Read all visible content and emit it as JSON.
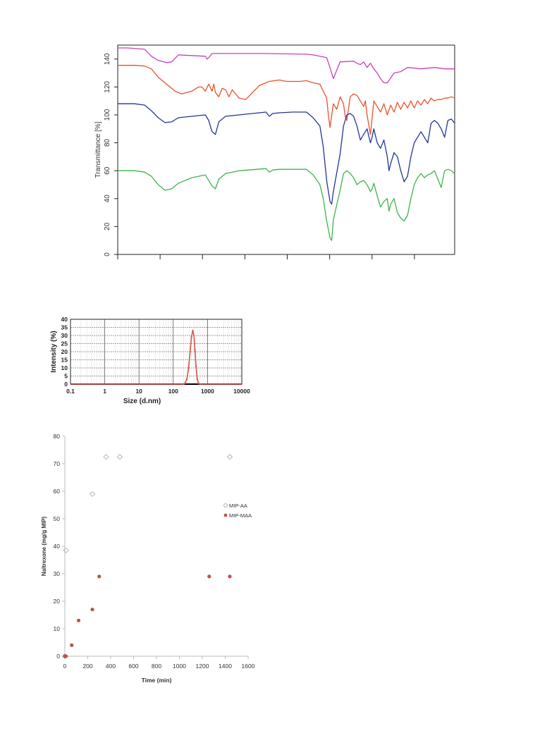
{
  "chart_data": [
    {
      "type": "line",
      "title": "",
      "xlabel": "",
      "ylabel": "Transmittance [%]",
      "ylim": [
        0,
        150
      ],
      "yticks": [
        0,
        20,
        40,
        60,
        80,
        100,
        120,
        140
      ],
      "x_tick_count": 8,
      "x_tick_labels_visible": false,
      "grid": false,
      "legend": "none",
      "colors": [
        "#cc3fb8",
        "#e8532a",
        "#23349a",
        "#3cb44a"
      ],
      "series": [
        {
          "color": "#cc3fb8",
          "x": [
            0,
            3,
            8,
            10,
            12,
            14.5,
            16,
            18,
            26,
            26.5,
            27,
            28,
            29,
            30,
            35,
            44,
            56,
            58,
            62,
            63,
            64,
            66,
            70,
            71,
            72,
            73,
            74,
            75,
            76,
            77,
            78,
            79,
            80,
            82,
            84,
            86,
            90,
            94,
            97,
            100
          ],
          "values": [
            148,
            148,
            147,
            142,
            139,
            137.5,
            138,
            143,
            142,
            140,
            141,
            144,
            144,
            144,
            144,
            144,
            143.5,
            143,
            141,
            134,
            126,
            138,
            138.5,
            137,
            136,
            138,
            134,
            137,
            133,
            130,
            126,
            123,
            123,
            130,
            131,
            134,
            133,
            134,
            133,
            133
          ]
        },
        {
          "color": "#e8532a",
          "x": [
            0,
            5,
            8,
            10,
            12,
            15,
            17,
            19,
            22,
            24,
            25,
            26,
            27,
            28,
            28.5,
            29,
            30,
            31,
            32,
            33,
            34,
            36,
            38,
            42,
            45,
            48,
            50,
            52,
            54,
            56,
            58,
            60,
            62,
            62.5,
            63,
            64,
            65,
            66,
            67,
            67.5,
            68,
            69,
            70,
            71,
            72,
            73,
            73.5,
            74,
            75,
            76,
            77,
            78,
            79,
            80,
            81,
            82,
            83,
            84,
            85,
            86,
            87,
            88,
            89,
            90,
            91,
            92,
            93,
            94,
            95,
            96,
            97,
            98,
            99,
            100
          ],
          "values": [
            135.5,
            135.5,
            135,
            133,
            127,
            121,
            117,
            115,
            117,
            120,
            120,
            117,
            122,
            117,
            122,
            116,
            113,
            119,
            118,
            113,
            118,
            112,
            111,
            121,
            124,
            125,
            124,
            124,
            124,
            124.5,
            123,
            122,
            112,
            100,
            91,
            108,
            104,
            113,
            108,
            99,
            96,
            113,
            115,
            114,
            110,
            106,
            110,
            100,
            86,
            110,
            106,
            102,
            108,
            100,
            107,
            102,
            109,
            104,
            109,
            105,
            110,
            105,
            110,
            107,
            111,
            108,
            112,
            110,
            111,
            111,
            112,
            112,
            113,
            112
          ]
        },
        {
          "color": "#23349a",
          "x": [
            0,
            5,
            8,
            10,
            12,
            14,
            16,
            18,
            22,
            26,
            27,
            28,
            29,
            30,
            32,
            36,
            44,
            45,
            46,
            48,
            52,
            56,
            58,
            60,
            61,
            62,
            63,
            63.5,
            64,
            66,
            67,
            68,
            69,
            70,
            71,
            72,
            73,
            74,
            75,
            75.5,
            76,
            77,
            78,
            79,
            80,
            80.5,
            81,
            82,
            83,
            84,
            85,
            86,
            87,
            88,
            89,
            90,
            91,
            92,
            93,
            94,
            95,
            96,
            97,
            98,
            99,
            100
          ],
          "values": [
            108,
            108,
            107,
            103,
            98,
            94.5,
            95,
            98,
            99,
            100,
            96,
            88,
            86,
            95,
            99,
            100,
            102,
            99,
            101,
            101.5,
            102,
            102,
            98,
            92,
            77,
            53,
            38,
            36,
            45,
            72,
            92,
            100,
            101,
            99,
            92,
            82,
            86,
            90,
            80,
            84,
            90,
            80,
            76,
            82,
            70,
            60,
            65,
            73,
            70,
            60,
            52,
            56,
            70,
            80,
            84,
            88,
            84,
            80,
            94,
            96,
            94,
            90,
            84,
            96,
            97,
            94
          ]
        },
        {
          "color": "#3cb44a",
          "x": [
            0,
            5,
            8,
            10,
            12,
            14,
            16,
            18,
            22,
            26,
            27,
            28,
            29,
            30,
            32,
            36,
            44,
            45,
            46,
            48,
            52,
            56,
            58,
            60,
            61,
            62,
            63,
            63.5,
            64,
            66,
            67,
            68,
            69,
            70,
            71,
            72,
            73,
            74,
            75,
            75.5,
            76,
            77,
            78,
            79,
            80,
            80.5,
            81,
            82,
            83,
            84,
            85,
            86,
            87,
            88,
            89,
            90,
            91,
            92,
            93,
            94,
            95,
            96,
            97,
            98,
            99,
            100
          ],
          "values": [
            60,
            60,
            59,
            56,
            50,
            46,
            47,
            51,
            55,
            57,
            53,
            49,
            47,
            54,
            58,
            60,
            61.5,
            59,
            60.5,
            61,
            61,
            61,
            57,
            50,
            40,
            24,
            12,
            10,
            25,
            46,
            58,
            60,
            58,
            55,
            50,
            52,
            53,
            50,
            45,
            47,
            51,
            42,
            34,
            38,
            40,
            31,
            36,
            40,
            30,
            26,
            24,
            28,
            40,
            50,
            55,
            58,
            55,
            57,
            58,
            60,
            54,
            48,
            60,
            61,
            60,
            58
          ]
        }
      ]
    },
    {
      "type": "line",
      "title": "",
      "xlabel": "Size (d.nm)",
      "ylabel": "Intensity (%)",
      "xscale": "log",
      "xlim": [
        0.1,
        10000
      ],
      "ylim": [
        0,
        40
      ],
      "xticks": [
        "0.1",
        "1",
        "10",
        "100",
        "1000",
        "10000"
      ],
      "yticks": [
        0,
        5,
        10,
        15,
        20,
        25,
        30,
        35,
        40
      ],
      "grid": true,
      "legend": "none",
      "colors": [
        "#d9534f"
      ],
      "series": [
        {
          "color": "#d9534f",
          "x": [
            0.1,
            0.2,
            0.4,
            0.7,
            1,
            2,
            5,
            10,
            20,
            50,
            100,
            150,
            200,
            220,
            250,
            280,
            310,
            340,
            370,
            400,
            430,
            460,
            500,
            550,
            600,
            700,
            1000,
            3000,
            10000
          ],
          "values": [
            0,
            0,
            0,
            0,
            0,
            0,
            0,
            0,
            0,
            0,
            0,
            0,
            0,
            0.5,
            3,
            10,
            20,
            29,
            33,
            30,
            21,
            11,
            3,
            0.5,
            0,
            0,
            0,
            0,
            0
          ]
        }
      ]
    },
    {
      "type": "scatter",
      "title": "",
      "xlabel": "Time (min)",
      "ylabel": "Naltrexone (mg/g MIP)",
      "xlim": [
        0,
        1600
      ],
      "ylim": [
        0,
        80
      ],
      "xticks": [
        0,
        200,
        400,
        600,
        800,
        1000,
        1200,
        1400,
        1600
      ],
      "yticks": [
        0,
        10,
        20,
        30,
        40,
        50,
        60,
        70,
        80
      ],
      "grid": false,
      "legend": "right",
      "series": [
        {
          "name": "MIP-AA",
          "color": "#b0b0b0",
          "marker": "diamond-open",
          "x": [
            0,
            10,
            240,
            360,
            480,
            1440
          ],
          "values": [
            0,
            38.5,
            59,
            72.5,
            72.5,
            72.5
          ]
        },
        {
          "name": "MIP-MAA",
          "color": "#c0504d",
          "marker": "circle",
          "x": [
            0,
            10,
            60,
            120,
            240,
            300,
            1260,
            1440
          ],
          "values": [
            0,
            0,
            4,
            13,
            17,
            29,
            29,
            29
          ]
        }
      ]
    }
  ]
}
